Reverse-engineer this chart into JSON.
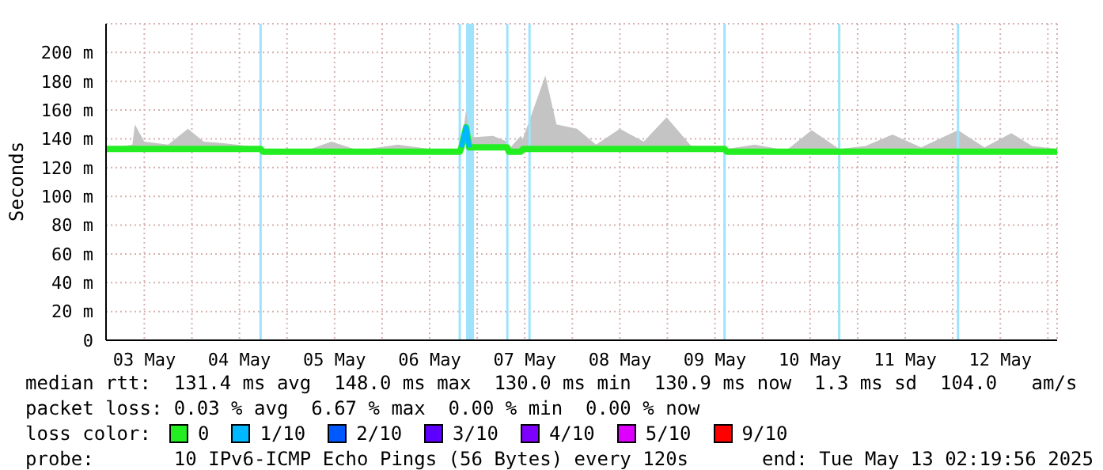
{
  "chart_data": {
    "type": "line",
    "ylabel": "Seconds",
    "legend_title": "loss color:",
    "legend": "bottom",
    "grid": true,
    "marker": "none",
    "x": [
      "2025-05-03T02:20",
      "2025-05-03T09:00",
      "2025-05-03T09:36",
      "2025-05-03T12:00",
      "2025-05-03T18:00",
      "2025-05-03T23:00",
      "2025-05-04T03:00",
      "2025-05-04T08:00",
      "2025-05-04T17:20",
      "2025-05-04T18:00",
      "2025-05-05T06:00",
      "2025-05-05T11:12",
      "2025-05-05T18:00",
      "2025-05-06T04:00",
      "2025-05-06T12:00",
      "2025-05-06T19:36",
      "2025-05-06T20:00",
      "2025-05-06T21:12",
      "2025-05-06T22:00",
      "2025-05-07T04:00",
      "2025-05-07T07:36",
      "2025-05-07T08:00",
      "2025-05-07T11:00",
      "2025-05-07T11:30",
      "2025-05-07T17:12",
      "2025-05-07T20:00",
      "2025-05-08T01:12",
      "2025-05-08T06:00",
      "2025-05-08T12:00",
      "2025-05-08T18:00",
      "2025-05-08T23:48",
      "2025-05-09T06:00",
      "2025-05-09T14:25",
      "2025-05-09T15:00",
      "2025-05-09T22:00",
      "2025-05-10T06:00",
      "2025-05-10T12:24",
      "2025-05-10T19:21",
      "2025-05-11T02:00",
      "2025-05-11T08:48",
      "2025-05-11T16:00",
      "2025-05-12T01:20",
      "2025-05-12T08:00",
      "2025-05-12T14:48",
      "2025-05-12T20:00",
      "2025-05-13T02:20"
    ],
    "series": [
      {
        "name": "0",
        "color": "#22ee22",
        "values": [
          133,
          133,
          133,
          133,
          133,
          133,
          133,
          133,
          133,
          131,
          131,
          131,
          131,
          131,
          131,
          131,
          134,
          148,
          134,
          134,
          134,
          131,
          131,
          133,
          133,
          133,
          133,
          133,
          133,
          133,
          133,
          133,
          133,
          131,
          131,
          131,
          131,
          131,
          131,
          131,
          131,
          131,
          131,
          131,
          131,
          131
        ],
        "lower": [
          133,
          133,
          133,
          133,
          133,
          133,
          133,
          133,
          133,
          131,
          131,
          131,
          131,
          131,
          131,
          131,
          134,
          148,
          134,
          134,
          134,
          131,
          131,
          133,
          133,
          133,
          133,
          133,
          133,
          133,
          133,
          133,
          133,
          131,
          131,
          131,
          131,
          131,
          131,
          131,
          131,
          131,
          131,
          131,
          131,
          131
        ],
        "upper": [
          133,
          136,
          150,
          138,
          136,
          147,
          138,
          137,
          134,
          131,
          133,
          138,
          132,
          136,
          133,
          132,
          136,
          160,
          141,
          142,
          138,
          133,
          142,
          140,
          184,
          150,
          147,
          136,
          147,
          138,
          155,
          135,
          134,
          133,
          136,
          132,
          146,
          133,
          135,
          143,
          134,
          146,
          134,
          144,
          135,
          133
        ]
      },
      {
        "name": "1/10",
        "color": "#00b8ff",
        "values": [
          null,
          null,
          null,
          null,
          null,
          null,
          null,
          null,
          null,
          null,
          null,
          null,
          null,
          null,
          null,
          null,
          134,
          148,
          134,
          null,
          null,
          null,
          null,
          null,
          null,
          null,
          null,
          null,
          null,
          null,
          null,
          null,
          null,
          null,
          null,
          null,
          null,
          null,
          null,
          null,
          null,
          null,
          null,
          null,
          null,
          null
        ]
      },
      {
        "name": "2/10",
        "color": "#0059ff",
        "values": [
          null,
          null,
          null,
          null,
          null,
          null,
          null,
          null,
          null,
          null,
          null,
          null,
          null,
          null,
          null,
          null,
          null,
          null,
          null,
          null,
          null,
          null,
          null,
          null,
          null,
          null,
          null,
          null,
          null,
          null,
          null,
          null,
          null,
          null,
          null,
          null,
          null,
          null,
          null,
          null,
          null,
          null,
          null,
          null,
          null,
          null
        ]
      },
      {
        "name": "3/10",
        "color": "#5e00ff",
        "values": [
          null,
          null,
          null,
          null,
          null,
          null,
          null,
          null,
          null,
          null,
          null,
          null,
          null,
          null,
          null,
          null,
          null,
          null,
          null,
          null,
          null,
          null,
          null,
          null,
          null,
          null,
          null,
          null,
          null,
          null,
          null,
          null,
          null,
          null,
          null,
          null,
          null,
          null,
          null,
          null,
          null,
          null,
          null,
          null,
          null,
          null
        ]
      },
      {
        "name": "4/10",
        "color": "#7e00ff",
        "values": [
          null,
          null,
          null,
          null,
          null,
          null,
          null,
          null,
          null,
          null,
          null,
          null,
          null,
          null,
          null,
          null,
          null,
          null,
          null,
          null,
          null,
          null,
          null,
          null,
          null,
          null,
          null,
          null,
          null,
          null,
          null,
          null,
          null,
          null,
          null,
          null,
          null,
          null,
          null,
          null,
          null,
          null,
          null,
          null,
          null,
          null
        ]
      },
      {
        "name": "5/10",
        "color": "#dd00ff",
        "values": [
          null,
          null,
          null,
          null,
          null,
          null,
          null,
          null,
          null,
          null,
          null,
          null,
          null,
          null,
          null,
          null,
          null,
          null,
          null,
          null,
          null,
          null,
          null,
          null,
          null,
          null,
          null,
          null,
          null,
          null,
          null,
          null,
          null,
          null,
          null,
          null,
          null,
          null,
          null,
          null,
          null,
          null,
          null,
          null,
          null,
          null
        ]
      },
      {
        "name": "9/10",
        "color": "#ff0000",
        "values": [
          null,
          null,
          null,
          null,
          null,
          null,
          null,
          null,
          null,
          null,
          null,
          null,
          null,
          null,
          null,
          null,
          null,
          null,
          null,
          null,
          null,
          null,
          null,
          null,
          null,
          null,
          null,
          null,
          null,
          null,
          null,
          null,
          null,
          null,
          null,
          null,
          null,
          null,
          null,
          null,
          null,
          null,
          null,
          null,
          null,
          null
        ]
      }
    ],
    "xlim": [
      "2025-05-03T02:20",
      "2025-05-13T02:20"
    ],
    "xticks": [
      {
        "value": "2025-05-03T12:00",
        "label": "03 May"
      },
      {
        "value": "2025-05-04T00:00",
        "label": null
      },
      {
        "value": "2025-05-04T12:00",
        "label": "04 May"
      },
      {
        "value": "2025-05-05T00:00",
        "label": null
      },
      {
        "value": "2025-05-05T12:00",
        "label": "05 May"
      },
      {
        "value": "2025-05-06T00:00",
        "label": null
      },
      {
        "value": "2025-05-06T12:00",
        "label": "06 May"
      },
      {
        "value": "2025-05-07T00:00",
        "label": null
      },
      {
        "value": "2025-05-07T12:00",
        "label": "07 May"
      },
      {
        "value": "2025-05-08T00:00",
        "label": null
      },
      {
        "value": "2025-05-08T12:00",
        "label": "08 May"
      },
      {
        "value": "2025-05-09T00:00",
        "label": null
      },
      {
        "value": "2025-05-09T12:00",
        "label": "09 May"
      },
      {
        "value": "2025-05-10T00:00",
        "label": null
      },
      {
        "value": "2025-05-10T12:00",
        "label": "10 May"
      },
      {
        "value": "2025-05-11T00:00",
        "label": null
      },
      {
        "value": "2025-05-11T12:00",
        "label": "11 May"
      },
      {
        "value": "2025-05-12T00:00",
        "label": null
      },
      {
        "value": "2025-05-12T12:00",
        "label": "12 May"
      },
      {
        "value": "2025-05-13T00:00",
        "label": null
      }
    ],
    "ylim": [
      0,
      220
    ],
    "yticks": [
      0,
      {
        "value": 20,
        "label": "20 m"
      },
      {
        "value": 40,
        "label": "40 m"
      },
      {
        "value": 60,
        "label": "60 m"
      },
      {
        "value": 80,
        "label": "80 m"
      },
      {
        "value": 100,
        "label": "100 m"
      },
      {
        "value": 120,
        "label": "120 m"
      },
      {
        "value": 140,
        "label": "140 m"
      },
      {
        "value": 160,
        "label": "160 m"
      },
      {
        "value": 180,
        "label": "180 m"
      },
      {
        "value": 200,
        "label": "200 m"
      }
    ],
    "ref_lines": [
      {
        "axis": "x",
        "value": "2025-05-04T17:20",
        "color": "#9ee3fb"
      },
      {
        "axis": "x",
        "value": "2025-05-06T19:36",
        "color": "#9ee3fb"
      },
      {
        "axis": "x",
        "value": "2025-05-07T07:36",
        "color": "#9ee3fb"
      },
      {
        "axis": "x",
        "value": "2025-05-07T13:12",
        "color": "#9ee3fb"
      },
      {
        "axis": "x",
        "value": "2025-05-09T14:25",
        "color": "#9ee3fb"
      },
      {
        "axis": "x",
        "value": "2025-05-10T19:21",
        "color": "#9ee3fb"
      },
      {
        "axis": "x",
        "value": "2025-05-12T01:20",
        "color": "#9ee3fb"
      }
    ],
    "bands": [
      {
        "axis": "x",
        "from": "2025-05-06T21:12",
        "to": "2025-05-06T23:12",
        "color": "#9ee3fb"
      }
    ],
    "annotations": [
      "median rtt:  131.4 ms avg  148.0 ms max  130.0 ms min  130.9 ms now  1.3 ms sd  104.0   am/s",
      "packet loss: 0.03 % avg  6.67 % max  0.00 % min  0.00 % now",
      "probe:       10 IPv6-ICMP Echo Pings (56 Bytes) every 120s",
      "end: Tue May 13 02:19:56 2025"
    ]
  }
}
